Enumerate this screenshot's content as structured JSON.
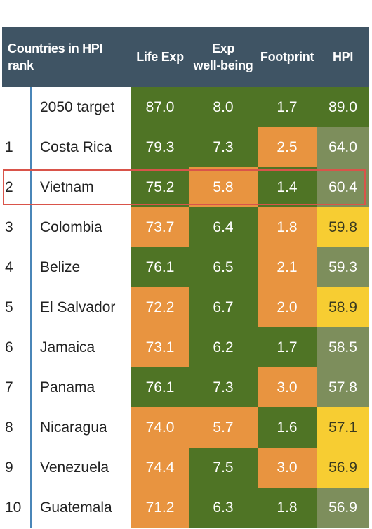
{
  "chart_data": {
    "type": "table",
    "headers": {
      "rank": "Countries in HPI rank",
      "life_exp": "Life Exp",
      "wellbeing_line1": "Exp",
      "wellbeing_line2": "well-being",
      "footprint": "Footprint",
      "hpi": "HPI"
    },
    "rows": [
      {
        "rank": "",
        "country": "2050 target",
        "life_exp": "87.0",
        "wellbeing": "8.0",
        "footprint": "1.7",
        "hpi": "89.0",
        "colors": [
          "green",
          "green",
          "green",
          "green"
        ]
      },
      {
        "rank": "1",
        "country": "Costa Rica",
        "life_exp": "79.3",
        "wellbeing": "7.3",
        "footprint": "2.5",
        "hpi": "64.0",
        "colors": [
          "green",
          "green",
          "orange",
          "grey"
        ]
      },
      {
        "rank": "2",
        "country": "Vietnam",
        "life_exp": "75.2",
        "wellbeing": "5.8",
        "footprint": "1.4",
        "hpi": "60.4",
        "colors": [
          "green",
          "orange",
          "green",
          "grey"
        ]
      },
      {
        "rank": "3",
        "country": "Colombia",
        "life_exp": "73.7",
        "wellbeing": "6.4",
        "footprint": "1.8",
        "hpi": "59.8",
        "colors": [
          "orange",
          "green",
          "orange",
          "yellow"
        ]
      },
      {
        "rank": "4",
        "country": "Belize",
        "life_exp": "76.1",
        "wellbeing": "6.5",
        "footprint": "2.1",
        "hpi": "59.3",
        "colors": [
          "green",
          "green",
          "orange",
          "grey"
        ]
      },
      {
        "rank": "5",
        "country": "El Salvador",
        "life_exp": "72.2",
        "wellbeing": "6.7",
        "footprint": "2.0",
        "hpi": "58.9",
        "colors": [
          "orange",
          "green",
          "orange",
          "yellow"
        ]
      },
      {
        "rank": "6",
        "country": "Jamaica",
        "life_exp": "73.1",
        "wellbeing": "6.2",
        "footprint": "1.7",
        "hpi": "58.5",
        "colors": [
          "orange",
          "green",
          "green",
          "grey"
        ]
      },
      {
        "rank": "7",
        "country": "Panama",
        "life_exp": "76.1",
        "wellbeing": "7.3",
        "footprint": "3.0",
        "hpi": "57.8",
        "colors": [
          "green",
          "green",
          "orange",
          "grey"
        ]
      },
      {
        "rank": "8",
        "country": "Nicaragua",
        "life_exp": "74.0",
        "wellbeing": "5.7",
        "footprint": "1.6",
        "hpi": "57.1",
        "colors": [
          "orange",
          "orange",
          "green",
          "yellow"
        ]
      },
      {
        "rank": "9",
        "country": "Venezuela",
        "life_exp": "74.4",
        "wellbeing": "7.5",
        "footprint": "3.0",
        "hpi": "56.9",
        "colors": [
          "orange",
          "green",
          "orange",
          "yellow"
        ]
      },
      {
        "rank": "10",
        "country": "Guatemala",
        "life_exp": "71.2",
        "wellbeing": "6.3",
        "footprint": "1.8",
        "hpi": "56.9",
        "colors": [
          "orange",
          "green",
          "green",
          "grey"
        ]
      }
    ],
    "highlighted_row": "Vietnam",
    "palette": {
      "green": "#4f7425",
      "orange": "#e89440",
      "yellow": "#f7cd32",
      "grey": "#7d8e5c",
      "header": "#3f5464",
      "highlight": "#d9544a"
    }
  }
}
